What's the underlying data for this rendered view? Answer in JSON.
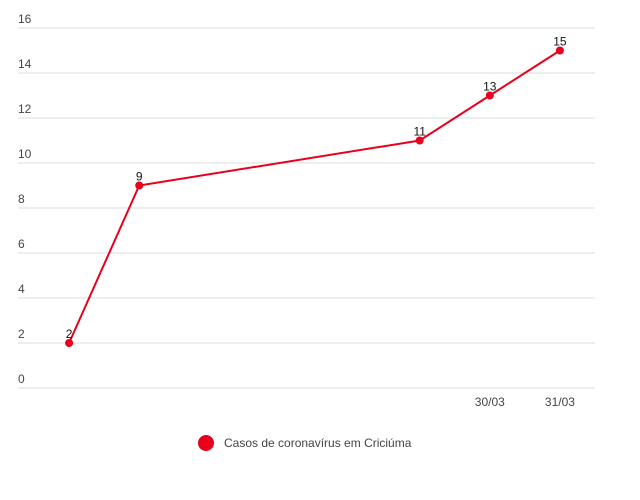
{
  "chart_data": {
    "type": "line",
    "x": [
      0,
      1,
      5,
      6,
      7
    ],
    "xlim": [
      -0.7,
      7.5
    ],
    "xticks": [
      {
        "value": 6,
        "label": "30/03"
      },
      {
        "value": 7,
        "label": "31/03"
      }
    ],
    "series": [
      {
        "name": "Casos de coronavírus em Criciúma",
        "color": "#e8001c",
        "values": [
          2,
          9,
          11,
          13,
          15
        ]
      }
    ],
    "ylim": [
      0,
      16
    ],
    "yticks": [
      0,
      2,
      4,
      6,
      8,
      10,
      12,
      14,
      16
    ],
    "grid": true,
    "legend": "bottom"
  }
}
